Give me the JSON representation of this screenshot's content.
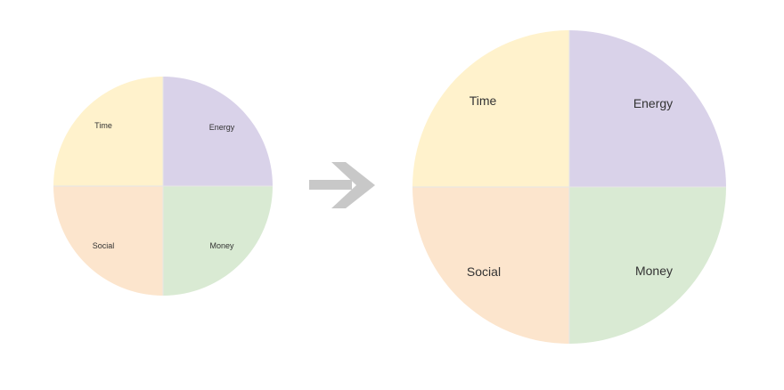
{
  "colors": {
    "time": "#fff2cc",
    "energy": "#d9d2e9",
    "social": "#fce5cd",
    "money": "#d9ead3",
    "arrow": "#c8c8c8",
    "divider": "#e6e6e6"
  },
  "small_circle": {
    "time_label": "Time",
    "energy_label": "Energy",
    "social_label": "Social",
    "money_label": "Money"
  },
  "large_circle": {
    "time_label": "Time",
    "energy_label": "Energy",
    "social_label": "Social",
    "money_label": "Money"
  },
  "arrow": {
    "icon": "right-arrow-icon"
  }
}
